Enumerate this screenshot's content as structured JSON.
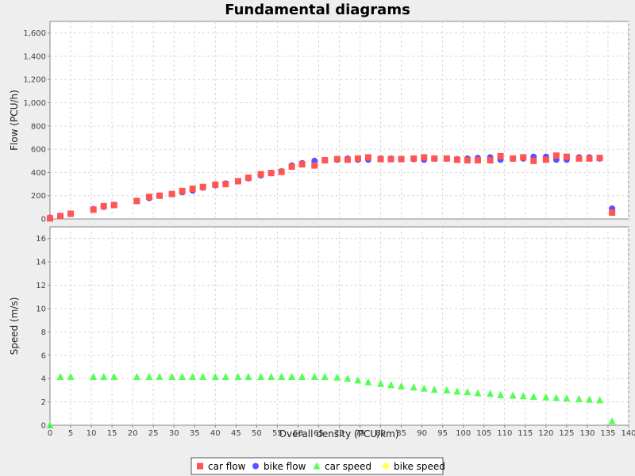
{
  "chart_data": {
    "title": "Fundamental diagrams",
    "type": "scatter",
    "xlabel": "Overall density (PCU/km)",
    "xlim": [
      0,
      140
    ],
    "x_ticks": [
      "0",
      "5",
      "10",
      "15",
      "20",
      "25",
      "30",
      "35",
      "40",
      "45",
      "50",
      "55",
      "60",
      "65",
      "70",
      "75",
      "80",
      "85",
      "90",
      "95",
      "100",
      "105",
      "110",
      "115",
      "120",
      "125",
      "130",
      "135",
      "140"
    ],
    "grid": true,
    "legend_position": "bottom",
    "legend": [
      {
        "name": "car flow",
        "marker": "square",
        "color": "#ff5555"
      },
      {
        "name": "bike flow",
        "marker": "circle",
        "color": "#5555ff"
      },
      {
        "name": "car speed",
        "marker": "triangle",
        "color": "#55ff55"
      },
      {
        "name": "bike speed",
        "marker": "diamond",
        "color": "#ffff55"
      }
    ],
    "panels": [
      {
        "ylabel": "Flow (PCU/h)",
        "ylim": [
          0,
          1700
        ],
        "y_ticks": [
          0,
          200,
          400,
          600,
          800,
          1000,
          1200,
          1400,
          1600
        ],
        "y_tick_labels": [
          "0",
          "200",
          "400",
          "600",
          "800",
          "1,000",
          "1,200",
          "1,400",
          "1,600"
        ],
        "series": [
          {
            "name": "bike flow",
            "marker": "circle",
            "color": "#5555ff",
            "x": [
              0,
              2.5,
              5,
              10.5,
              13,
              15.5,
              21,
              24,
              26.5,
              29.5,
              32,
              34.5,
              37,
              40,
              42.5,
              45.5,
              48,
              51,
              53.5,
              56,
              58.5,
              61,
              64,
              66.5,
              69.5,
              72,
              74.5,
              77,
              80,
              82.5,
              85,
              88,
              90.5,
              93,
              96,
              98.5,
              101,
              103.5,
              106.5,
              109,
              112,
              114.5,
              117,
              120,
              122.5,
              125,
              128,
              130.5,
              133,
              136
            ],
            "y": [
              10,
              25,
              45,
              85,
              105,
              120,
              155,
              180,
              200,
              215,
              230,
              245,
              270,
              290,
              305,
              325,
              350,
              375,
              395,
              410,
              460,
              480,
              500,
              505,
              510,
              520,
              510,
              510,
              520,
              520,
              515,
              515,
              510,
              520,
              520,
              515,
              520,
              525,
              530,
              510,
              520,
              520,
              535,
              535,
              510,
              510,
              530,
              530,
              520,
              90
            ]
          },
          {
            "name": "car flow",
            "marker": "square",
            "color": "#ff5555",
            "x": [
              0,
              2.5,
              5,
              10.5,
              13,
              15.5,
              21,
              24,
              26.5,
              29.5,
              32,
              34.5,
              37,
              40,
              42.5,
              45.5,
              48,
              51,
              53.5,
              56,
              58.5,
              61,
              64,
              66.5,
              69.5,
              72,
              74.5,
              77,
              80,
              82.5,
              85,
              88,
              90.5,
              93,
              96,
              98.5,
              101,
              103.5,
              106.5,
              109,
              112,
              114.5,
              117,
              120,
              122.5,
              125,
              128,
              130.5,
              133,
              136
            ],
            "y": [
              5,
              25,
              45,
              80,
              110,
              120,
              155,
              190,
              200,
              215,
              240,
              260,
              275,
              295,
              300,
              325,
              355,
              385,
              395,
              405,
              450,
              470,
              460,
              505,
              515,
              510,
              520,
              530,
              515,
              515,
              515,
              520,
              530,
              520,
              520,
              510,
              505,
              505,
              505,
              540,
              520,
              530,
              500,
              510,
              545,
              535,
              520,
              520,
              525,
              55
            ]
          }
        ]
      },
      {
        "ylabel": "Speed (m/s)",
        "ylim": [
          0,
          17
        ],
        "y_ticks": [
          0,
          2,
          4,
          6,
          8,
          10,
          12,
          14,
          16
        ],
        "y_tick_labels": [
          "0",
          "2",
          "4",
          "6",
          "8",
          "10",
          "12",
          "14",
          "16"
        ],
        "series": [
          {
            "name": "car speed",
            "marker": "triangle",
            "color": "#55ff55",
            "x": [
              0,
              2.5,
              5,
              10.5,
              13,
              15.5,
              21,
              24,
              26.5,
              29.5,
              32,
              34.5,
              37,
              40,
              42.5,
              45.5,
              48,
              51,
              53.5,
              56,
              58.5,
              61,
              64,
              66.5,
              69.5,
              72,
              74.5,
              77,
              80,
              82.5,
              85,
              88,
              90.5,
              93,
              96,
              98.5,
              101,
              103.5,
              106.5,
              109,
              112,
              114.5,
              117,
              120,
              122.5,
              125,
              128,
              130.5,
              133,
              136
            ],
            "y": [
              0,
              4.15,
              4.15,
              4.15,
              4.15,
              4.15,
              4.15,
              4.15,
              4.15,
              4.15,
              4.15,
              4.15,
              4.15,
              4.15,
              4.15,
              4.15,
              4.15,
              4.15,
              4.15,
              4.15,
              4.15,
              4.15,
              4.15,
              4.15,
              4.1,
              4.0,
              3.85,
              3.7,
              3.55,
              3.45,
              3.35,
              3.25,
              3.15,
              3.05,
              3.0,
              2.9,
              2.85,
              2.75,
              2.7,
              2.6,
              2.55,
              2.5,
              2.45,
              2.4,
              2.35,
              2.3,
              2.25,
              2.2,
              2.15,
              0.35
            ]
          },
          {
            "name": "bike speed",
            "marker": "diamond",
            "color": "#ffff55",
            "x": [],
            "y": []
          }
        ]
      }
    ]
  }
}
